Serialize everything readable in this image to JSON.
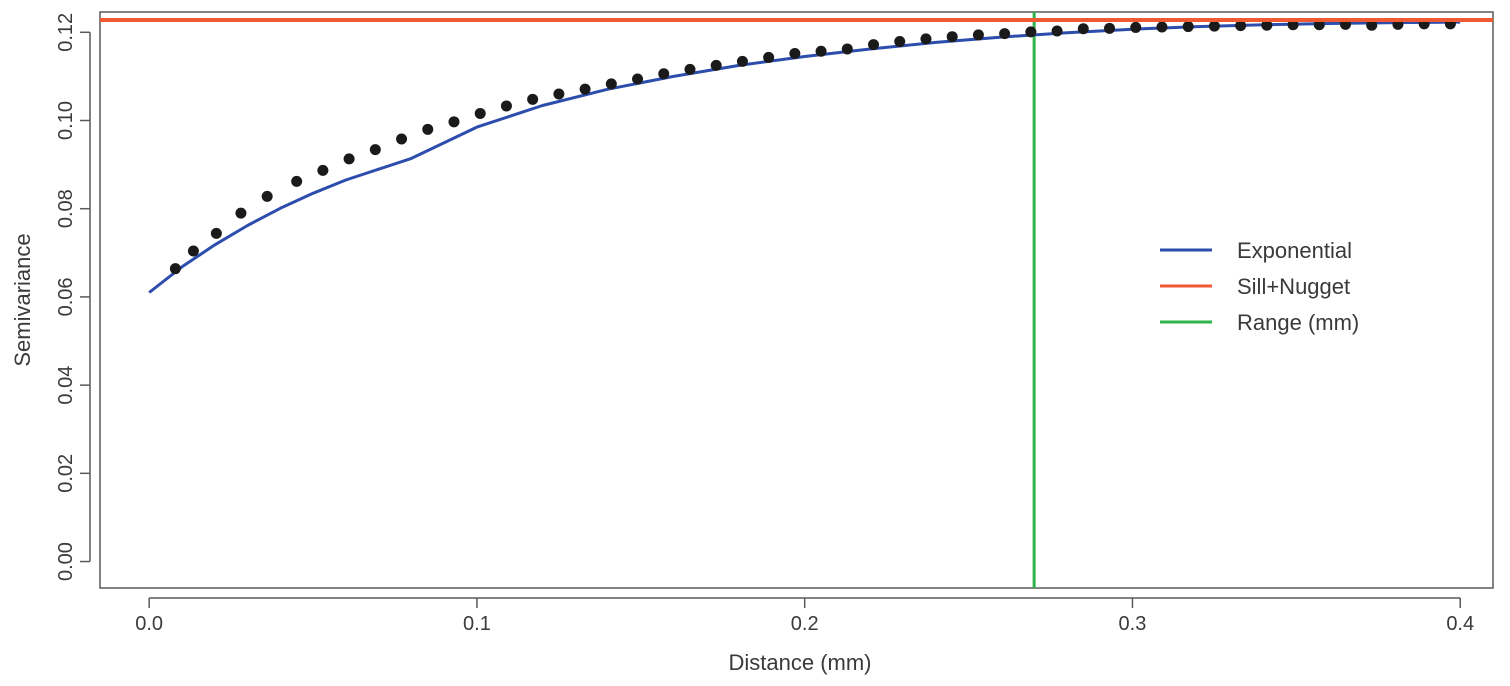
{
  "chart_data": {
    "type": "scatter",
    "xlabel": "Distance (mm)",
    "ylabel": "Semivariance",
    "xlim": [
      -0.015,
      0.41
    ],
    "ylim": [
      -0.006,
      0.1246
    ],
    "xticks": [
      0.0,
      0.1,
      0.2,
      0.3,
      0.4
    ],
    "xtick_labels": [
      "0.0",
      "0.1",
      "0.2",
      "0.3",
      "0.4"
    ],
    "yticks": [
      0.0,
      0.02,
      0.04,
      0.06,
      0.08,
      0.1,
      0.12
    ],
    "ytick_labels": [
      "0.00",
      "0.02",
      "0.04",
      "0.06",
      "0.08",
      "0.10",
      "0.12"
    ],
    "grid": false,
    "legend_position": "right",
    "points": {
      "x": [
        0.008,
        0.0135,
        0.0205,
        0.028,
        0.036,
        0.045,
        0.053,
        0.061,
        0.069,
        0.077,
        0.085,
        0.093,
        0.101,
        0.109,
        0.117,
        0.125,
        0.133,
        0.141,
        0.149,
        0.157,
        0.165,
        0.173,
        0.181,
        0.189,
        0.197,
        0.205,
        0.213,
        0.221,
        0.229,
        0.237,
        0.245,
        0.253,
        0.261,
        0.269,
        0.277,
        0.285,
        0.293,
        0.301,
        0.309,
        0.317,
        0.325,
        0.333,
        0.341,
        0.349,
        0.357,
        0.365,
        0.373,
        0.381,
        0.389,
        0.397
      ],
      "y": [
        0.0664,
        0.0704,
        0.0744,
        0.079,
        0.0828,
        0.0862,
        0.0887,
        0.0913,
        0.0934,
        0.0958,
        0.098,
        0.0997,
        0.1016,
        0.1033,
        0.1048,
        0.106,
        0.1071,
        0.1083,
        0.1094,
        0.1106,
        0.1116,
        0.1125,
        0.1134,
        0.1143,
        0.1152,
        0.1157,
        0.1162,
        0.1172,
        0.1179,
        0.1185,
        0.119,
        0.1194,
        0.1197,
        0.1201,
        0.1203,
        0.1208,
        0.1209,
        0.1211,
        0.1212,
        0.1213,
        0.1214,
        0.1215,
        0.1216,
        0.1217,
        0.1217,
        0.1218,
        0.1216,
        0.1218,
        0.1219,
        0.1219
      ],
      "color": "#1a1a1a"
    },
    "series": [
      {
        "name": "Exponential",
        "kind": "curve",
        "color": "#2d4dad",
        "x": [
          0.0,
          0.01,
          0.02,
          0.03,
          0.04,
          0.05,
          0.06,
          0.08,
          0.1,
          0.12,
          0.14,
          0.16,
          0.18,
          0.2,
          0.22,
          0.24,
          0.26,
          0.28,
          0.3,
          0.32,
          0.34,
          0.36,
          0.38,
          0.4
        ],
        "y": [
          0.061,
          0.0668,
          0.0718,
          0.0762,
          0.0801,
          0.0835,
          0.0865,
          0.0914,
          0.0985,
          0.1034,
          0.1071,
          0.11,
          0.1125,
          0.1145,
          0.1162,
          0.1177,
          0.1189,
          0.1199,
          0.1207,
          0.1213,
          0.1217,
          0.122,
          0.1222,
          0.1223
        ]
      },
      {
        "name": "Sill+Nugget",
        "kind": "hline",
        "color": "#f05a33",
        "y": 0.1228
      },
      {
        "name": "Range (mm)",
        "kind": "vline",
        "color": "#2fb44a",
        "x": 0.27
      }
    ]
  }
}
